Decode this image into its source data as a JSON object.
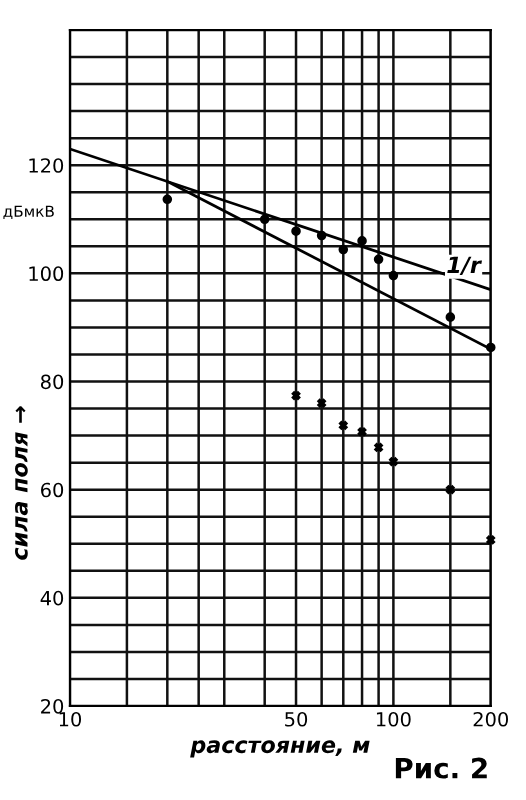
{
  "chart_data": {
    "type": "line",
    "xlabel": "расстояние, м",
    "ylabel": "сила поля →",
    "log": "x",
    "grid": true,
    "legend": false,
    "xlim": [
      10,
      200
    ],
    "ylim": [
      20,
      145
    ],
    "xticks": [
      10,
      {
        "value": 15,
        "label": null
      },
      {
        "value": 20,
        "label": null
      },
      {
        "value": 25,
        "label": null
      },
      {
        "value": 30,
        "label": null
      },
      {
        "value": 40,
        "label": null
      },
      50,
      {
        "value": 60,
        "label": null
      },
      {
        "value": 70,
        "label": null
      },
      {
        "value": 80,
        "label": null
      },
      {
        "value": 90,
        "label": null
      },
      100,
      {
        "value": 150,
        "label": null
      },
      200
    ],
    "yticks": [
      20,
      {
        "value": 25,
        "label": null
      },
      {
        "value": 30,
        "label": null
      },
      {
        "value": 35,
        "label": null
      },
      40,
      {
        "value": 45,
        "label": null
      },
      {
        "value": 50,
        "label": null
      },
      {
        "value": 55,
        "label": null
      },
      60,
      {
        "value": 65,
        "label": null
      },
      {
        "value": 70,
        "label": null
      },
      {
        "value": 75,
        "label": null
      },
      80,
      {
        "value": 85,
        "label": null
      },
      {
        "value": 90,
        "label": null
      },
      {
        "value": 95,
        "label": null
      },
      100,
      {
        "value": 105,
        "label": null
      },
      {
        "value": 110,
        "label": null
      },
      {
        "value": 115,
        "label": null
      },
      120,
      {
        "value": 125,
        "label": null
      },
      {
        "value": 130,
        "label": null
      },
      {
        "value": 135,
        "label": null
      },
      {
        "value": 140,
        "label": null
      },
      {
        "value": 145,
        "label": null
      }
    ],
    "series": [
      {
        "name": "1/r",
        "color": "#000000",
        "marker": "none",
        "x": [
          10,
          200
        ],
        "values": [
          123,
          97
        ]
      },
      {
        "color": "#000000",
        "marker": "none",
        "x": [
          20,
          200
        ],
        "values": [
          117,
          86
        ]
      },
      {
        "type": "scatter",
        "color": "#000000",
        "marker": "circle",
        "x": [
          20,
          40,
          50,
          60,
          70,
          80,
          90,
          100,
          150,
          200
        ],
        "values": [
          113.7,
          110,
          107.8,
          107,
          104.4,
          106,
          102.6,
          99.6,
          91.9,
          86.3
        ]
      },
      {
        "type": "scatter",
        "color": "#000000",
        "marker": "cross",
        "x": [
          50,
          60,
          70,
          80,
          90,
          100,
          150,
          200
        ],
        "values": [
          77.4,
          76,
          71.9,
          70.7,
          67.8,
          65.2,
          60,
          50.7
        ]
      }
    ],
    "annotations": [
      "дБмкВ",
      "Рис. 2"
    ]
  }
}
